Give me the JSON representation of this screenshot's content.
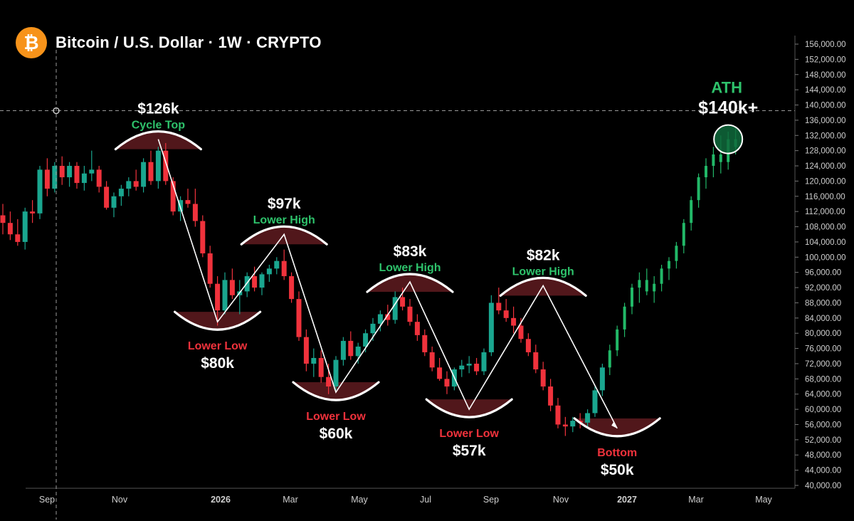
{
  "header": {
    "title": "Bitcoin / U.S. Dollar · 1W · CRYPTO",
    "logo_glyph": "₿"
  },
  "colors": {
    "background": "#000000",
    "up": "#1aa68f",
    "down": "#f0323c",
    "label_green": "#2ec26b",
    "label_red": "#f0323c",
    "highlight_fill": "#5a1a1e",
    "ath_fill": "#0f6a3c",
    "axis_text": "#cfcfcf"
  },
  "chart_data": {
    "type": "candlestick",
    "title": "Bitcoin / U.S. Dollar · 1W · CRYPTO",
    "y_axis": {
      "min": 40000,
      "max": 156000,
      "ticks": [
        "156,000.00",
        "152,000.00",
        "148,000.00",
        "144,000.00",
        "140,000.00",
        "136,000.00",
        "132,000.00",
        "128,000.00",
        "124,000.00",
        "120,000.00",
        "116,000.00",
        "112,000.00",
        "108,000.00",
        "104,000.00",
        "100,000.00",
        "96,000.00",
        "92,000.00",
        "88,000.00",
        "84,000.00",
        "80,000.00",
        "76,000.00",
        "72,000.00",
        "68,000.00",
        "64,000.00",
        "60,000.00",
        "56,000.00",
        "52,000.00",
        "48,000.00",
        "44,000.00",
        "40,000.00"
      ],
      "tick_values": [
        156000,
        152000,
        148000,
        144000,
        140000,
        136000,
        132000,
        128000,
        124000,
        120000,
        116000,
        112000,
        108000,
        104000,
        100000,
        96000,
        92000,
        88000,
        84000,
        80000,
        76000,
        72000,
        68000,
        64000,
        60000,
        56000,
        52000,
        48000,
        44000,
        40000
      ]
    },
    "x_axis": {
      "labels": [
        "Sep",
        "Nov",
        "2026",
        "Mar",
        "May",
        "Jul",
        "Sep",
        "Nov",
        "2027",
        "Mar",
        "May"
      ],
      "label_dates": [
        "2025-09",
        "2025-11",
        "2026-01",
        "2026-03",
        "2026-05",
        "2026-07",
        "2026-09",
        "2026-11",
        "2027-01",
        "2027-03",
        "2027-05"
      ],
      "bold": [
        false,
        false,
        true,
        false,
        false,
        false,
        false,
        false,
        true,
        false,
        false
      ]
    },
    "crosshair_price": 138500,
    "candles_ohlc": [
      [
        111000,
        114000,
        106000,
        109000
      ],
      [
        109000,
        112000,
        104500,
        106000
      ],
      [
        106000,
        110000,
        103000,
        104000
      ],
      [
        104000,
        113000,
        102000,
        112000
      ],
      [
        112000,
        115000,
        109000,
        111500
      ],
      [
        111500,
        124000,
        110000,
        123000
      ],
      [
        123000,
        126000,
        116000,
        118000
      ],
      [
        118000,
        125000,
        117000,
        124000
      ],
      [
        124000,
        126500,
        119000,
        121000
      ],
      [
        121000,
        125000,
        118500,
        124000
      ],
      [
        124000,
        125000,
        118000,
        119500
      ],
      [
        119500,
        124000,
        117500,
        122000
      ],
      [
        122000,
        128000,
        120000,
        123000
      ],
      [
        123000,
        124000,
        117000,
        118500
      ],
      [
        118500,
        120000,
        112500,
        113000
      ],
      [
        113000,
        117000,
        110500,
        116000
      ],
      [
        116000,
        119000,
        113500,
        118000
      ],
      [
        118000,
        121000,
        116000,
        120000
      ],
      [
        120000,
        123000,
        117500,
        118500
      ],
      [
        118500,
        126000,
        117000,
        125000
      ],
      [
        125000,
        128000,
        119000,
        120000
      ],
      [
        120000,
        129000,
        118000,
        128000
      ],
      [
        128000,
        130000,
        119000,
        120000
      ],
      [
        120000,
        121000,
        111000,
        112000
      ],
      [
        112000,
        116000,
        109500,
        115000
      ],
      [
        115000,
        118000,
        113000,
        114000
      ],
      [
        114000,
        118000,
        108000,
        109500
      ],
      [
        109500,
        111000,
        100000,
        101000
      ],
      [
        101000,
        103000,
        92000,
        93000
      ],
      [
        93000,
        95000,
        82000,
        86000
      ],
      [
        86000,
        96000,
        85000,
        94000
      ],
      [
        94000,
        97000,
        89000,
        90000
      ],
      [
        90000,
        94000,
        85000,
        91000
      ],
      [
        91000,
        96000,
        89500,
        95000
      ],
      [
        95000,
        97500,
        91000,
        92000
      ],
      [
        92000,
        96000,
        90000,
        95500
      ],
      [
        95500,
        98000,
        93500,
        97000
      ],
      [
        97000,
        100000,
        95500,
        99000
      ],
      [
        99000,
        102000,
        94000,
        95000
      ],
      [
        95000,
        96000,
        88000,
        89000
      ],
      [
        89000,
        91000,
        78000,
        79000
      ],
      [
        79000,
        81000,
        70000,
        72000
      ],
      [
        72000,
        76000,
        68500,
        73500
      ],
      [
        73500,
        75500,
        67000,
        68500
      ],
      [
        68500,
        72000,
        64000,
        66000
      ],
      [
        66000,
        74000,
        65000,
        73000
      ],
      [
        73000,
        79000,
        71500,
        78000
      ],
      [
        78000,
        80500,
        73000,
        74000
      ],
      [
        74000,
        77500,
        72000,
        76500
      ],
      [
        76500,
        81000,
        75000,
        80000
      ],
      [
        80000,
        84000,
        78000,
        82500
      ],
      [
        82500,
        86000,
        80500,
        85000
      ],
      [
        85000,
        87500,
        82000,
        83500
      ],
      [
        83500,
        91000,
        82500,
        89500
      ],
      [
        89500,
        92000,
        86000,
        87000
      ],
      [
        87000,
        89000,
        82000,
        83000
      ],
      [
        83000,
        85000,
        78000,
        79500
      ],
      [
        79500,
        81000,
        74000,
        75000
      ],
      [
        75000,
        76500,
        70000,
        71000
      ],
      [
        71000,
        73500,
        67500,
        68000
      ],
      [
        68000,
        70000,
        64000,
        66000
      ],
      [
        66000,
        71000,
        65000,
        70500
      ],
      [
        70500,
        73000,
        68500,
        71500
      ],
      [
        71500,
        74000,
        69500,
        72000
      ],
      [
        72000,
        73500,
        69000,
        70000
      ],
      [
        70000,
        76000,
        69000,
        75000
      ],
      [
        75000,
        90000,
        74000,
        88000
      ],
      [
        88000,
        92000,
        85000,
        86000
      ],
      [
        86000,
        89000,
        83000,
        84000
      ],
      [
        84000,
        87000,
        80000,
        82000
      ],
      [
        82000,
        84000,
        77500,
        78500
      ],
      [
        78500,
        80000,
        74000,
        75000
      ],
      [
        75000,
        77000,
        69500,
        70500
      ],
      [
        70500,
        72500,
        65000,
        66000
      ],
      [
        66000,
        68000,
        59500,
        61000
      ],
      [
        61000,
        63000,
        55000,
        56000
      ],
      [
        56000,
        58000,
        53000,
        55500
      ],
      [
        55500,
        58000,
        54000,
        57000
      ],
      [
        57000,
        59000,
        55000,
        56500
      ],
      [
        56500,
        60000,
        55500,
        59000
      ],
      [
        59000,
        66000,
        58000,
        65000
      ],
      [
        65000,
        72000,
        63500,
        71000
      ],
      [
        71000,
        77000,
        69000,
        75500
      ],
      [
        75500,
        82000,
        74000,
        81000
      ],
      [
        81000,
        88000,
        79000,
        87000
      ],
      [
        87000,
        93000,
        85000,
        92000
      ],
      [
        92000,
        96000,
        88000,
        94000
      ],
      [
        94000,
        97000,
        90000,
        91000
      ],
      [
        91000,
        95000,
        88000,
        93000
      ],
      [
        93000,
        98000,
        91000,
        97000
      ],
      [
        97000,
        100000,
        94000,
        99000
      ],
      [
        99000,
        104000,
        97000,
        103000
      ],
      [
        103000,
        110000,
        101000,
        109000
      ],
      [
        109000,
        116000,
        107000,
        115000
      ],
      [
        115000,
        122000,
        113000,
        121000
      ],
      [
        121000,
        126000,
        118000,
        124000
      ],
      [
        124000,
        129000,
        121000,
        127000
      ],
      [
        127000,
        132000,
        122000,
        125000
      ],
      [
        125000,
        133000,
        123000,
        131000
      ],
      [
        131000,
        134000,
        127000,
        129000
      ]
    ],
    "zigzag_points": [
      {
        "candle": 21,
        "price": 131000
      },
      {
        "candle": 29,
        "price": 83000
      },
      {
        "candle": 38,
        "price": 106000
      },
      {
        "candle": 45,
        "price": 64500
      },
      {
        "candle": 55,
        "price": 93500
      },
      {
        "candle": 63,
        "price": 60000
      },
      {
        "candle": 73,
        "price": 92500
      },
      {
        "candle": 83,
        "price": 55000
      }
    ],
    "annotations": [
      {
        "kind": "top",
        "candle": 21,
        "price": 131000,
        "value": "$126k",
        "label": "Cycle Top"
      },
      {
        "kind": "bottom",
        "candle": 29,
        "price": 83000,
        "value": "$80k",
        "label": "Lower Low"
      },
      {
        "kind": "top",
        "candle": 38,
        "price": 106000,
        "value": "$97k",
        "label": "Lower High"
      },
      {
        "kind": "bottom",
        "candle": 45,
        "price": 64500,
        "value": "$60k",
        "label": "Lower Low"
      },
      {
        "kind": "top",
        "candle": 55,
        "price": 93500,
        "value": "$83k",
        "label": "Lower High"
      },
      {
        "kind": "bottom",
        "candle": 63,
        "price": 60000,
        "value": "$57k",
        "label": "Lower Low"
      },
      {
        "kind": "top",
        "candle": 73,
        "price": 92500,
        "value": "$82k",
        "label": "Lower High"
      },
      {
        "kind": "bottom",
        "candle": 83,
        "price": 55000,
        "value": "$50k",
        "label": "Bottom"
      }
    ],
    "ath": {
      "candle": 98,
      "price": 131000,
      "label": "ATH",
      "value": "$140k+"
    }
  }
}
